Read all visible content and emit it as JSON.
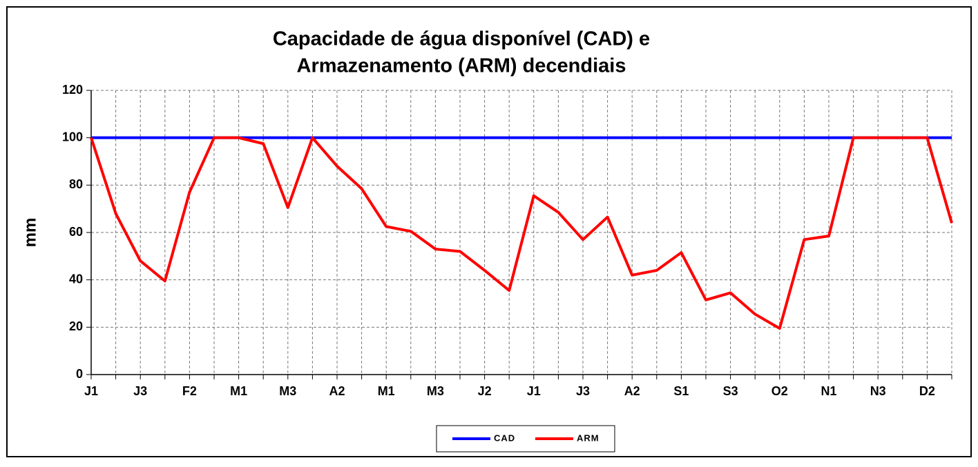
{
  "chart_data": {
    "type": "line",
    "title": [
      "Capacidade de água disponível (CAD) e",
      "Armazenamento (ARM) decendiais"
    ],
    "ylabel": "mm",
    "categories": [
      "J1",
      null,
      "J3",
      null,
      "F2",
      null,
      "M1",
      null,
      "M3",
      null,
      "A2",
      null,
      "M1",
      null,
      "M3",
      null,
      "J2",
      null,
      "J1",
      null,
      "J3",
      null,
      "A2",
      null,
      "S1",
      null,
      "S3",
      null,
      "O2",
      null,
      "N1",
      null,
      "N3",
      null,
      "D2",
      null
    ],
    "series": [
      {
        "name": "CAD",
        "color": "#0000ff",
        "values": [
          100,
          100,
          100,
          100,
          100,
          100,
          100,
          100,
          100,
          100,
          100,
          100,
          100,
          100,
          100,
          100,
          100,
          100,
          100,
          100,
          100,
          100,
          100,
          100,
          100,
          100,
          100,
          100,
          100,
          100,
          100,
          100,
          100,
          100,
          100,
          100
        ]
      },
      {
        "name": "ARM",
        "color": "#ff0000",
        "values": [
          100,
          68,
          48,
          39.5,
          77,
          100,
          100,
          97.5,
          70.5,
          100,
          88,
          78.5,
          62.5,
          60.5,
          53,
          52,
          44,
          35.5,
          75.5,
          68.5,
          57,
          66.5,
          42,
          44,
          51.5,
          31.5,
          34.5,
          25.5,
          19.5,
          57,
          58.5,
          100,
          100,
          100,
          100,
          64
        ]
      }
    ],
    "ylim": [
      0,
      120
    ],
    "yticks": [
      0,
      20,
      40,
      60,
      80,
      100,
      120
    ],
    "grid": true,
    "legend": "bottom"
  }
}
